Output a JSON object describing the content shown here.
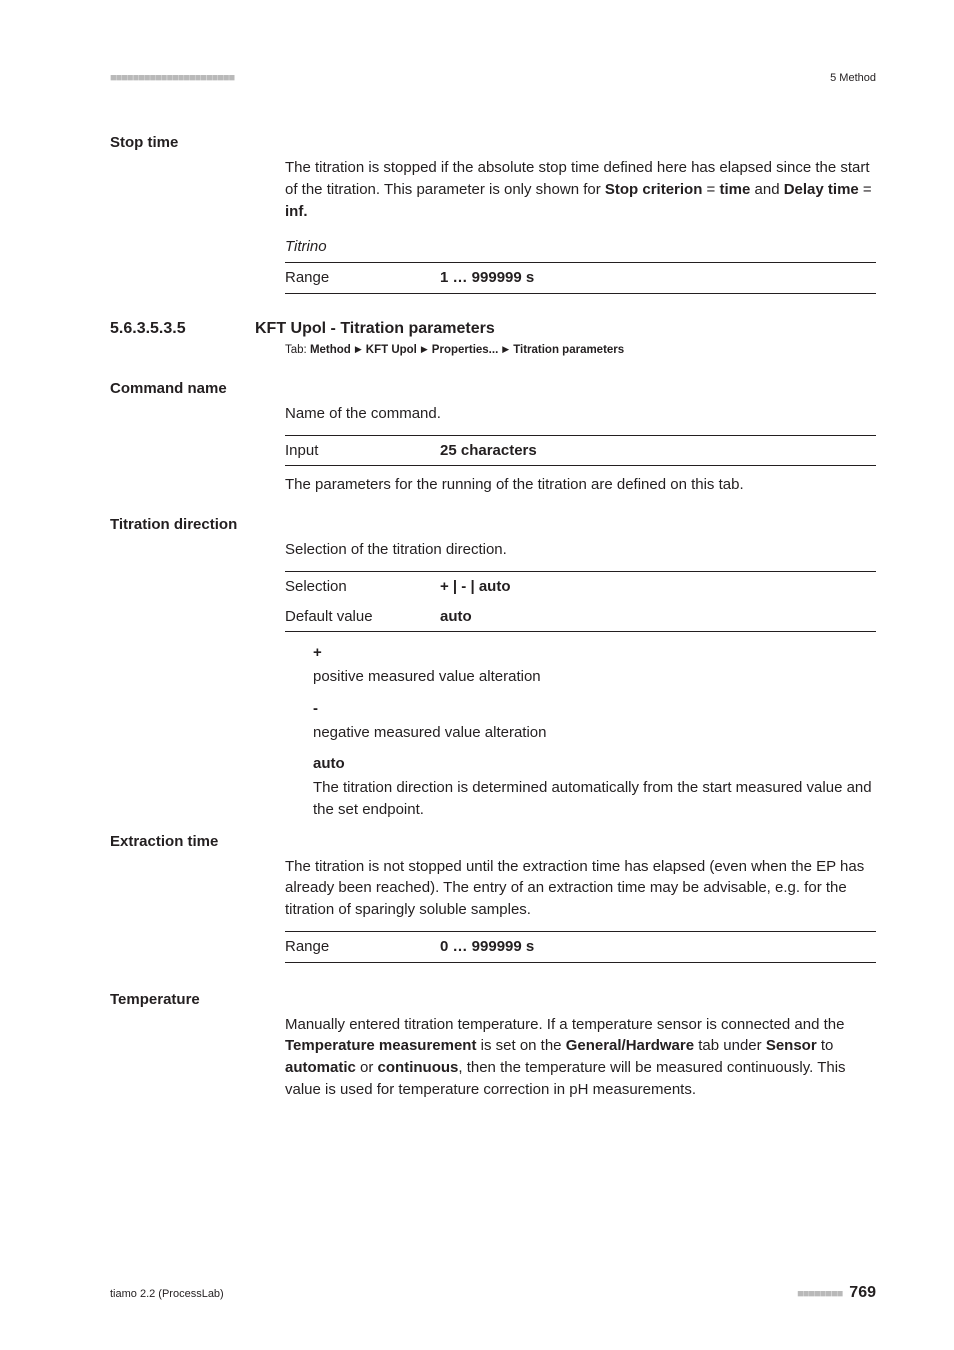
{
  "header": {
    "right_text": "5 Method"
  },
  "stop_time": {
    "heading": "Stop time",
    "body_html": "The titration is stopped if the absolute stop time defined here has elapsed since the start of the titration. This parameter is only shown for <b>Stop criterion</b> = <b>time</b> and <b>Delay time</b> = <b>inf.</b>",
    "device": "Titrino",
    "range_label": "Range",
    "range_value": "1 … 999999 s"
  },
  "section": {
    "number": "5.6.3.5.3.5",
    "title": "KFT Upol - Titration parameters",
    "tab_prefix": "Tab:",
    "tab_parts": [
      "Method",
      "KFT Upol",
      "Properties...",
      "Titration parameters"
    ]
  },
  "command_name": {
    "heading": "Command name",
    "desc": "Name of the command.",
    "input_label": "Input",
    "input_value": "25 characters",
    "after": "The parameters for the running of the titration are defined on this tab."
  },
  "titration_direction": {
    "heading": "Titration direction",
    "desc": "Selection of the titration direction.",
    "selection_label": "Selection",
    "selection_value": "+ | - | auto",
    "default_label": "Default value",
    "default_value": "auto",
    "defs": [
      {
        "term": "+",
        "def": "positive measured value alteration"
      },
      {
        "term": "-",
        "def": "negative measured value alteration"
      },
      {
        "term": "auto",
        "def": "The titration direction is determined automatically from the start measured value and the set endpoint."
      }
    ]
  },
  "extraction_time": {
    "heading": "Extraction time",
    "desc": "The titration is not stopped until the extraction time has elapsed (even when the EP has already been reached). The entry of an extraction time may be advisable, e.g. for the titration of sparingly soluble samples.",
    "range_label": "Range",
    "range_value": "0 … 999999 s"
  },
  "temperature": {
    "heading": "Temperature",
    "body_html": "Manually entered titration temperature. If a temperature sensor is connected and the <b>Temperature measurement</b> is set on the <b>General/Hardware</b> tab under <b>Sensor</b> to <b>automatic</b> or <b>continuous</b>, then the temperature will be measured continuously. This value is used for temperature correction in pH measurements."
  },
  "footer": {
    "left": "tiamo 2.2 (ProcessLab)",
    "page": "769"
  }
}
